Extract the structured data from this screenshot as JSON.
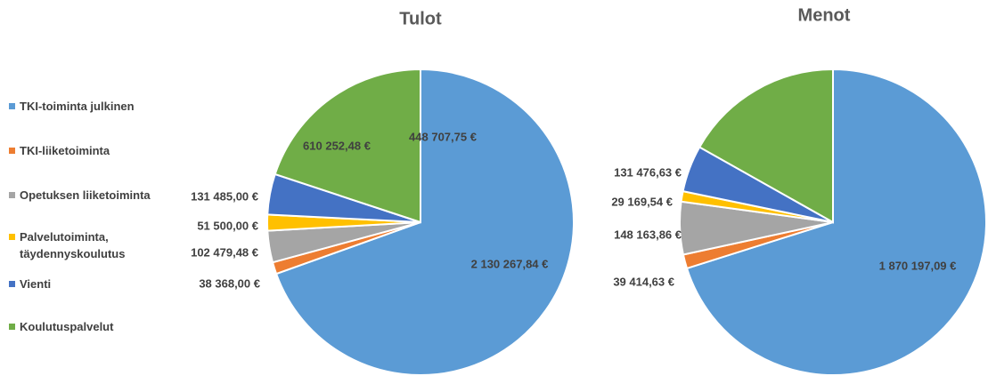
{
  "chart_data": [
    {
      "type": "pie",
      "title": "Tulot",
      "categories": [
        "TKI-toiminta julkinen",
        "TKI-liiketoiminta",
        "Opetuksen liiketoiminta",
        "Palvelutoiminta, täydennyskoulutus",
        "Vienti",
        "Koulutuspalvelut"
      ],
      "colors": [
        "#5b9bd5",
        "#ed7d31",
        "#a5a5a5",
        "#ffc000",
        "#4472c4",
        "#70ad47"
      ],
      "values": [
        2130267.84,
        38368.0,
        102479.48,
        51500.0,
        131485.0,
        610252.48
      ],
      "value_labels": [
        "2 130 267,84 €",
        "38 368,00 €",
        "102 479,48 €",
        "51 500,00 €",
        "131 485,00 €",
        "610 252,48 €"
      ]
    },
    {
      "type": "pie",
      "title": "Menot",
      "values": [
        1870197.09,
        39414.63,
        148163.86,
        29169.54,
        131476.63,
        448707.75
      ],
      "value_labels": [
        "1 870 197,09 €",
        "39 414,63 €",
        "148 163,86 €",
        "29 169,54 €",
        "131 476,63 €",
        "448 707,75 €"
      ]
    }
  ]
}
